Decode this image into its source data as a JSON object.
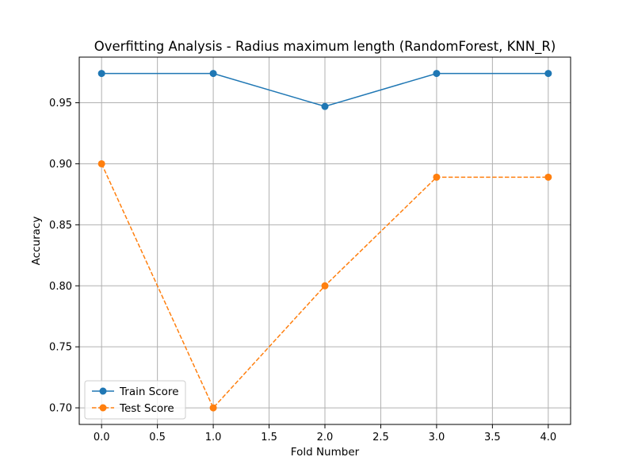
{
  "chart_data": {
    "type": "line",
    "title": "Overfitting Analysis - Radius maximum length (RandomForest, KNN_R)",
    "xlabel": "Fold Number",
    "ylabel": "Accuracy",
    "x": [
      0,
      1,
      2,
      3,
      4
    ],
    "xlim": [
      -0.2,
      4.2
    ],
    "ylim": [
      0.6864,
      0.9874
    ],
    "xticks": [
      "0.0",
      "0.5",
      "1.0",
      "1.5",
      "2.0",
      "2.5",
      "3.0",
      "3.5",
      "4.0"
    ],
    "yticks": [
      "0.70",
      "0.75",
      "0.80",
      "0.85",
      "0.90",
      "0.95"
    ],
    "grid": true,
    "legend_position": "lower-left",
    "series": [
      {
        "name": "Train Score",
        "values": [
          0.974,
          0.974,
          0.947,
          0.974,
          0.974
        ],
        "color": "#1f77b4",
        "linestyle": "solid",
        "marker": "circle"
      },
      {
        "name": "Test Score",
        "values": [
          0.9,
          0.7,
          0.8,
          0.889,
          0.889
        ],
        "color": "#ff7f0e",
        "linestyle": "dashed",
        "marker": "circle"
      }
    ]
  }
}
